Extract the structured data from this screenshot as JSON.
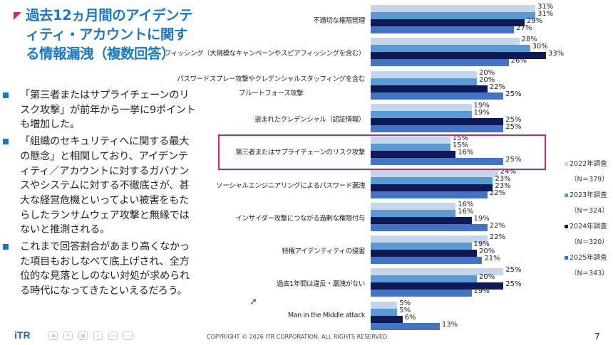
{
  "slide": {
    "title": "過去12ヵ月間のアイデンティティ・アカウントに関する情報漏洩（複数回答）",
    "bullets": [
      "「第三者またはサプライチェーンのリスク攻撃」が前年から一挙に9ポイントも増加した。",
      "「組織のセキュリティへに関する最大の懸念」と相関しており、アイデンティティ／アカウントに対するガバナンスやシステムに対する不徹底さが、甚大な経営危機といってよい被害をもたらしたランサムウェア攻撃と無縁ではないと推測される。",
      "これまで回答割合があまり高くなかった項目もおしなべて底上げされ、全方位的な見落としのない対処が求められる時代になってきたといえるだろう。"
    ],
    "logo": "iTR",
    "copyright": "COPYRIGHT © 2026 ITR CORPORATION. ALL RIGHTS RESERVED.",
    "page_number": "7",
    "accent_color": "#e0197a",
    "title_color": "#1b78c2"
  },
  "chart_data": {
    "type": "bar",
    "orientation": "horizontal",
    "categories": [
      "不適切な権限管理",
      "フィッシング（大規模なキャンペーンやスピアフィッシングを含む）",
      "パスワードスプレー攻撃やクレデンシャルスタッフィングを含むブルートフォース攻撃",
      "盗まれたクレデンシャル（認証情報）",
      "第三者またはサプライチェーンのリスク攻撃",
      "ソーシャルエンジニアリングによるパスワード漏洩",
      "インサイダー攻撃につながる過剰な権限付与",
      "特権アイデンティティの侵害",
      "過去1年間は違反・漏洩がない",
      "Man in the Middle attack"
    ],
    "series": [
      {
        "name": "2022年調査",
        "n": "（N＝379）",
        "color": "#c5d6ea",
        "values": [
          31,
          28,
          20,
          19,
          15,
          24,
          16,
          22,
          25,
          5
        ]
      },
      {
        "name": "2023年調査",
        "n": "（N＝324）",
        "color": "#5b9bd5",
        "values": [
          31,
          30,
          20,
          19,
          15,
          23,
          16,
          19,
          20,
          5
        ]
      },
      {
        "name": "2024年調査",
        "n": "（N＝320）",
        "color": "#0d1a55",
        "values": [
          29,
          33,
          22,
          25,
          16,
          23,
          19,
          20,
          25,
          6
        ]
      },
      {
        "name": "2025年調査",
        "n": "（N＝343）",
        "color": "#4472c4",
        "values": [
          27,
          26,
          25,
          25,
          25,
          22,
          22,
          21,
          19,
          13
        ]
      }
    ],
    "value_suffix": "%",
    "highlighted_category": "第三者またはサプライチェーンのリスク攻撃",
    "legend_position": "right",
    "grid": false
  }
}
